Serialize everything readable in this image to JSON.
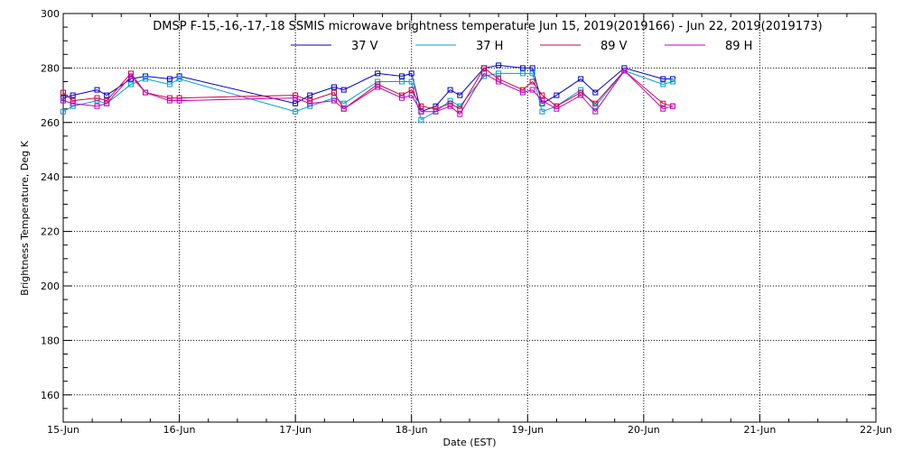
{
  "chart_data": {
    "type": "line",
    "title": "DMSP F-15,-16,-17,-18 SSMIS microwave brightness temperature Jun 15, 2019(2019166) - Jun 22, 2019(2019173)",
    "xlabel": "Date (EST)",
    "ylabel": "Brightness Temperature, Deg K",
    "xlim": [
      "2019-06-15",
      "2019-06-22"
    ],
    "ylim": [
      150,
      300
    ],
    "x_ticks": [
      "15-Jun",
      "16-Jun",
      "17-Jun",
      "18-Jun",
      "19-Jun",
      "20-Jun",
      "21-Jun",
      "22-Jun"
    ],
    "y_ticks": [
      160,
      180,
      200,
      220,
      240,
      260,
      280,
      300
    ],
    "grid": true,
    "legend": "top",
    "x": [
      "2019-06-15 00:00",
      "2019-06-15 02:00",
      "2019-06-15 07:00",
      "2019-06-15 09:00",
      "2019-06-15 14:00",
      "2019-06-15 17:00",
      "2019-06-15 22:00",
      "2019-06-16 00:00",
      "2019-06-17 00:00",
      "2019-06-17 03:00",
      "2019-06-17 08:00",
      "2019-06-17 10:00",
      "2019-06-17 17:00",
      "2019-06-17 22:00",
      "2019-06-18 00:00",
      "2019-06-18 02:00",
      "2019-06-18 05:00",
      "2019-06-18 08:00",
      "2019-06-18 10:00",
      "2019-06-18 15:00",
      "2019-06-18 18:00",
      "2019-06-18 23:00",
      "2019-06-19 01:00",
      "2019-06-19 03:00",
      "2019-06-19 06:00",
      "2019-06-19 11:00",
      "2019-06-19 14:00",
      "2019-06-19 20:00",
      "2019-06-20 04:00",
      "2019-06-20 06:00"
    ],
    "series": [
      {
        "name": "37 V",
        "color": "#0000c0",
        "values": [
          269,
          270,
          272,
          270,
          276,
          277,
          276,
          277,
          267,
          270,
          273,
          272,
          278,
          277,
          278,
          264,
          266,
          272,
          270,
          280,
          281,
          280,
          280,
          267,
          270,
          276,
          271,
          280,
          276,
          276
        ]
      },
      {
        "name": "37 H",
        "color": "#00a0d0",
        "values": [
          264,
          266,
          268,
          267,
          274,
          276,
          274,
          276,
          264,
          266,
          269,
          267,
          275,
          275,
          275,
          261,
          264,
          268,
          266,
          277,
          278,
          278,
          278,
          264,
          266,
          272,
          266,
          279,
          274,
          275
        ]
      },
      {
        "name": "89 V",
        "color": "#d00040",
        "values": [
          271,
          268,
          269,
          268,
          278,
          271,
          269,
          269,
          270,
          268,
          271,
          265,
          274,
          270,
          272,
          266,
          265,
          267,
          265,
          280,
          276,
          272,
          275,
          270,
          266,
          271,
          267,
          279,
          267,
          266
        ]
      },
      {
        "name": "89 H",
        "color": "#c000c0",
        "values": [
          268,
          267,
          266,
          267,
          277,
          271,
          268,
          268,
          269,
          267,
          268,
          265,
          273,
          269,
          270,
          264,
          264,
          266,
          263,
          278,
          275,
          271,
          272,
          268,
          265,
          270,
          264,
          279,
          265,
          266
        ]
      }
    ]
  }
}
